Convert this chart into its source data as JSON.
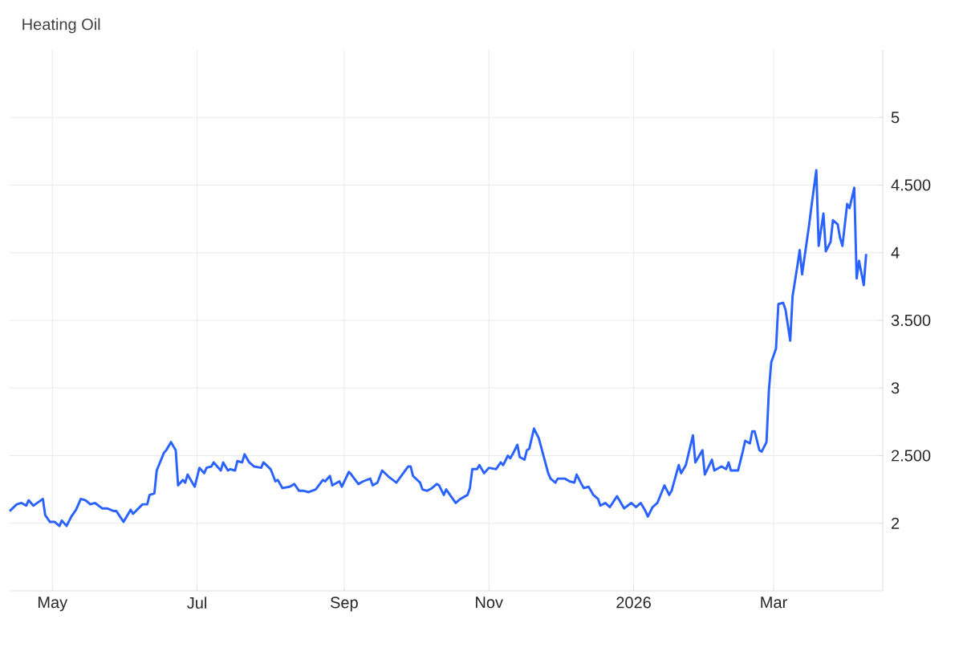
{
  "chart_data": {
    "type": "line",
    "title": "Heating Oil",
    "x": [
      "2025-04-13",
      "2025-04-16",
      "2025-04-18",
      "2025-04-20",
      "2025-04-21",
      "2025-04-23",
      "2025-04-27",
      "2025-04-28",
      "2025-04-30",
      "2025-05-02",
      "2025-05-04",
      "2025-05-05",
      "2025-05-07",
      "2025-05-09",
      "2025-05-11",
      "2025-05-13",
      "2025-05-15",
      "2025-05-17",
      "2025-05-19",
      "2025-05-22",
      "2025-05-24",
      "2025-05-27",
      "2025-05-28",
      "2025-05-31",
      "2025-06-03",
      "2025-06-04",
      "2025-06-08",
      "2025-06-10",
      "2025-06-11",
      "2025-06-13",
      "2025-06-14",
      "2025-06-17",
      "2025-06-18",
      "2025-06-20",
      "2025-06-22",
      "2025-06-23",
      "2025-06-25",
      "2025-06-26",
      "2025-06-27",
      "2025-06-30",
      "2025-07-02",
      "2025-07-04",
      "2025-07-05",
      "2025-07-07",
      "2025-07-08",
      "2025-07-11",
      "2025-07-12",
      "2025-07-14",
      "2025-07-15",
      "2025-07-17",
      "2025-07-18",
      "2025-07-20",
      "2025-07-21",
      "2025-07-23",
      "2025-07-25",
      "2025-07-28",
      "2025-07-29",
      "2025-08-01",
      "2025-08-03",
      "2025-08-04",
      "2025-08-06",
      "2025-08-09",
      "2025-08-11",
      "2025-08-13",
      "2025-08-15",
      "2025-08-17",
      "2025-08-20",
      "2025-08-23",
      "2025-08-24",
      "2025-08-26",
      "2025-08-27",
      "2025-08-30",
      "2025-08-31",
      "2025-09-03",
      "2025-09-04",
      "2025-09-07",
      "2025-09-09",
      "2025-09-12",
      "2025-09-13",
      "2025-09-15",
      "2025-09-17",
      "2025-09-20",
      "2025-09-23",
      "2025-09-28",
      "2025-09-29",
      "2025-09-30",
      "2025-10-03",
      "2025-10-04",
      "2025-10-06",
      "2025-10-08",
      "2025-10-10",
      "2025-10-11",
      "2025-10-13",
      "2025-10-14",
      "2025-10-16",
      "2025-10-18",
      "2025-10-20",
      "2025-10-23",
      "2025-10-24",
      "2025-10-25",
      "2025-10-27",
      "2025-10-28",
      "2025-10-30",
      "2025-11-01",
      "2025-11-04",
      "2025-11-06",
      "2025-11-07",
      "2025-11-09",
      "2025-11-10",
      "2025-11-11",
      "2025-11-13",
      "2025-11-14",
      "2025-11-16",
      "2025-11-17",
      "2025-11-18",
      "2025-11-20",
      "2025-11-22",
      "2025-11-24",
      "2025-11-26",
      "2025-11-27",
      "2025-11-29",
      "2025-11-30",
      "2025-12-03",
      "2025-12-05",
      "2025-12-07",
      "2025-12-08",
      "2025-12-10",
      "2025-12-11",
      "2025-12-13",
      "2025-12-15",
      "2025-12-17",
      "2025-12-18",
      "2025-12-20",
      "2025-12-22",
      "2025-12-25",
      "2025-12-28",
      "2025-12-31",
      "2026-01-02",
      "2026-01-04",
      "2026-01-06",
      "2026-01-07",
      "2026-01-09",
      "2026-01-11",
      "2026-01-14",
      "2026-01-16",
      "2026-01-17",
      "2026-01-20",
      "2026-01-21",
      "2026-01-23",
      "2026-01-26",
      "2026-01-27",
      "2026-01-30",
      "2026-01-31",
      "2026-02-03",
      "2026-02-04",
      "2026-02-07",
      "2026-02-09",
      "2026-02-10",
      "2026-02-11",
      "2026-02-14",
      "2026-02-16",
      "2026-02-17",
      "2026-02-19",
      "2026-02-20",
      "2026-02-21",
      "2026-02-23",
      "2026-02-24",
      "2026-02-26",
      "2026-02-27",
      "2026-02-28",
      "2026-03-02",
      "2026-03-03",
      "2026-03-05",
      "2026-03-06",
      "2026-03-08",
      "2026-03-09",
      "2026-03-11",
      "2026-03-12",
      "2026-03-13",
      "2026-03-16",
      "2026-03-17",
      "2026-03-19",
      "2026-03-20",
      "2026-03-22",
      "2026-03-23",
      "2026-03-25",
      "2026-03-26",
      "2026-03-28",
      "2026-03-29",
      "2026-03-30",
      "2026-04-01",
      "2026-04-02",
      "2026-04-04",
      "2026-04-05",
      "2026-04-06",
      "2026-04-08",
      "2026-04-09"
    ],
    "series": [
      {
        "color": "#2962ff",
        "values": [
          2.09,
          2.14,
          2.15,
          2.13,
          2.17,
          2.13,
          2.18,
          2.06,
          2.01,
          2.01,
          1.98,
          2.02,
          1.98,
          2.05,
          2.1,
          2.18,
          2.17,
          2.14,
          2.15,
          2.11,
          2.11,
          2.09,
          2.09,
          2.01,
          2.1,
          2.07,
          2.14,
          2.14,
          2.21,
          2.22,
          2.39,
          2.52,
          2.54,
          2.6,
          2.54,
          2.28,
          2.32,
          2.3,
          2.36,
          2.27,
          2.41,
          2.37,
          2.41,
          2.42,
          2.45,
          2.39,
          2.45,
          2.39,
          2.4,
          2.39,
          2.46,
          2.45,
          2.51,
          2.45,
          2.42,
          2.41,
          2.45,
          2.4,
          2.31,
          2.32,
          2.26,
          2.27,
          2.29,
          2.24,
          2.24,
          2.23,
          2.25,
          2.32,
          2.31,
          2.35,
          2.28,
          2.31,
          2.27,
          2.38,
          2.36,
          2.29,
          2.31,
          2.33,
          2.28,
          2.3,
          2.39,
          2.34,
          2.3,
          2.42,
          2.42,
          2.35,
          2.3,
          2.25,
          2.24,
          2.26,
          2.29,
          2.28,
          2.21,
          2.25,
          2.2,
          2.15,
          2.18,
          2.21,
          2.26,
          2.4,
          2.4,
          2.43,
          2.37,
          2.41,
          2.4,
          2.45,
          2.43,
          2.5,
          2.48,
          2.51,
          2.58,
          2.49,
          2.47,
          2.54,
          2.55,
          2.7,
          2.63,
          2.5,
          2.37,
          2.33,
          2.3,
          2.33,
          2.33,
          2.31,
          2.3,
          2.36,
          2.29,
          2.26,
          2.27,
          2.21,
          2.18,
          2.13,
          2.15,
          2.12,
          2.2,
          2.11,
          2.15,
          2.12,
          2.15,
          2.09,
          2.05,
          2.12,
          2.15,
          2.28,
          2.21,
          2.24,
          2.43,
          2.37,
          2.43,
          2.65,
          2.45,
          2.54,
          2.36,
          2.47,
          2.39,
          2.42,
          2.4,
          2.45,
          2.39,
          2.39,
          2.53,
          2.61,
          2.59,
          2.68,
          2.68,
          2.54,
          2.53,
          2.6,
          2.98,
          3.19,
          3.29,
          3.62,
          3.63,
          3.58,
          3.35,
          3.68,
          3.9,
          4.02,
          3.84,
          4.21,
          4.35,
          4.61,
          4.05,
          4.29,
          4.01,
          4.08,
          4.24,
          4.21,
          4.11,
          4.05,
          4.36,
          4.33,
          4.48,
          3.81,
          3.94,
          3.76,
          3.99
        ]
      }
    ],
    "xlim": [
      "2025-04-13",
      "2026-04-16"
    ],
    "ylim": [
      1.5,
      5.5
    ],
    "xticks": [
      {
        "value": "2025-05-01",
        "label": "May"
      },
      {
        "value": "2025-07-01",
        "label": "Jul"
      },
      {
        "value": "2025-09-01",
        "label": "Sep"
      },
      {
        "value": "2025-11-01",
        "label": "Nov"
      },
      {
        "value": "2026-01-01",
        "label": "2026"
      },
      {
        "value": "2026-03-01",
        "label": "Mar"
      }
    ],
    "yticks": [
      2,
      {
        "value": 2.5,
        "label": "2.500"
      },
      3,
      {
        "value": 3.5,
        "label": "3.500"
      },
      4,
      {
        "value": 4.5,
        "label": "4.500"
      },
      5
    ],
    "grid": true
  }
}
